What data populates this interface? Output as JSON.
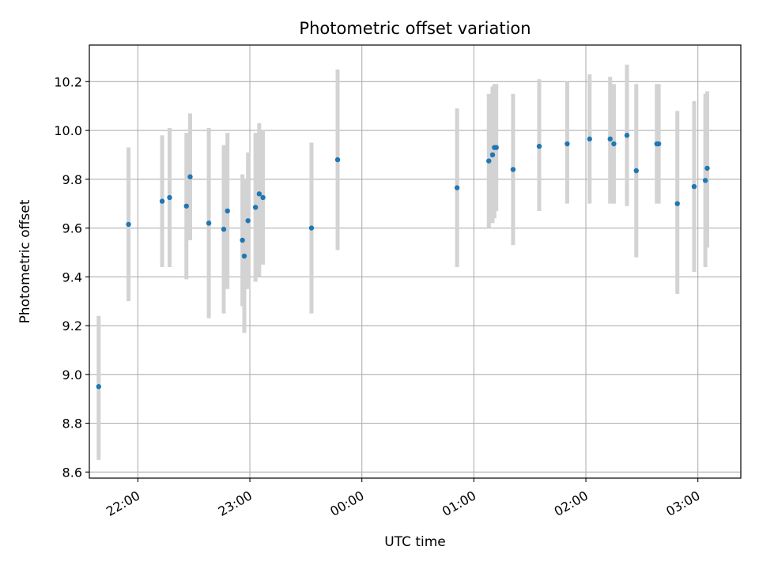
{
  "chart_data": {
    "type": "scatter",
    "title": "Photometric offset variation",
    "xlabel": "UTC time",
    "ylabel": "Photometric offset",
    "x_axis_type": "time",
    "xlim": [
      "21:34",
      "03:23"
    ],
    "ylim": [
      8.575,
      10.35
    ],
    "grid": true,
    "x_ticks": [
      "22:00",
      "23:00",
      "00:00",
      "01:00",
      "02:00",
      "03:00"
    ],
    "y_ticks": [
      "8.6",
      "8.8",
      "9.0",
      "9.2",
      "9.4",
      "9.6",
      "9.8",
      "10.0",
      "10.2"
    ],
    "colors": {
      "points": "#1f77b4",
      "errorbars": "#d3d3d3",
      "grid": "#b0b0b0"
    },
    "points": [
      {
        "x": "21:39",
        "y": 8.95,
        "low": 8.65,
        "high": 9.24
      },
      {
        "x": "21:55",
        "y": 9.615,
        "low": 9.3,
        "high": 9.93
      },
      {
        "x": "22:13",
        "y": 9.71,
        "low": 9.44,
        "high": 9.98
      },
      {
        "x": "22:17",
        "y": 9.725,
        "low": 9.44,
        "high": 10.01
      },
      {
        "x": "22:26",
        "y": 9.69,
        "low": 9.39,
        "high": 9.99
      },
      {
        "x": "22:28",
        "y": 9.81,
        "low": 9.55,
        "high": 10.07
      },
      {
        "x": "22:38",
        "y": 9.62,
        "low": 9.23,
        "high": 10.01
      },
      {
        "x": "22:46",
        "y": 9.595,
        "low": 9.25,
        "high": 9.94
      },
      {
        "x": "22:48",
        "y": 9.67,
        "low": 9.35,
        "high": 9.99
      },
      {
        "x": "22:56",
        "y": 9.55,
        "low": 9.28,
        "high": 9.82
      },
      {
        "x": "22:57",
        "y": 9.485,
        "low": 9.17,
        "high": 9.8
      },
      {
        "x": "22:59",
        "y": 9.63,
        "low": 9.35,
        "high": 9.91
      },
      {
        "x": "23:03",
        "y": 9.685,
        "low": 9.38,
        "high": 9.99
      },
      {
        "x": "23:05",
        "y": 9.74,
        "low": 9.4,
        "high": 10.03
      },
      {
        "x": "23:07",
        "y": 9.725,
        "low": 9.45,
        "high": 10.0
      },
      {
        "x": "23:33",
        "y": 9.6,
        "low": 9.25,
        "high": 9.95
      },
      {
        "x": "23:47",
        "y": 9.88,
        "low": 9.51,
        "high": 10.25
      },
      {
        "x": "00:51",
        "y": 9.765,
        "low": 9.44,
        "high": 10.09
      },
      {
        "x": "01:08",
        "y": 9.875,
        "low": 9.6,
        "high": 10.15
      },
      {
        "x": "01:10",
        "y": 9.9,
        "low": 9.62,
        "high": 10.18
      },
      {
        "x": "01:11",
        "y": 9.93,
        "low": 9.64,
        "high": 10.19
      },
      {
        "x": "01:12",
        "y": 9.93,
        "low": 9.67,
        "high": 10.19
      },
      {
        "x": "01:21",
        "y": 9.84,
        "low": 9.53,
        "high": 10.15
      },
      {
        "x": "01:35",
        "y": 9.935,
        "low": 9.67,
        "high": 10.21
      },
      {
        "x": "01:50",
        "y": 9.945,
        "low": 9.7,
        "high": 10.2
      },
      {
        "x": "02:02",
        "y": 9.965,
        "low": 9.7,
        "high": 10.23
      },
      {
        "x": "02:13",
        "y": 9.965,
        "low": 9.7,
        "high": 10.22
      },
      {
        "x": "02:15",
        "y": 9.945,
        "low": 9.7,
        "high": 10.19
      },
      {
        "x": "02:22",
        "y": 9.98,
        "low": 9.69,
        "high": 10.27
      },
      {
        "x": "02:27",
        "y": 9.835,
        "low": 9.48,
        "high": 10.19
      },
      {
        "x": "02:38",
        "y": 9.945,
        "low": 9.7,
        "high": 10.19
      },
      {
        "x": "02:39",
        "y": 9.945,
        "low": 9.7,
        "high": 10.19
      },
      {
        "x": "02:49",
        "y": 9.7,
        "low": 9.33,
        "high": 10.08
      },
      {
        "x": "02:58",
        "y": 9.77,
        "low": 9.42,
        "high": 10.12
      },
      {
        "x": "03:04",
        "y": 9.795,
        "low": 9.44,
        "high": 10.15
      },
      {
        "x": "03:05",
        "y": 9.845,
        "low": 9.52,
        "high": 10.16
      }
    ]
  }
}
